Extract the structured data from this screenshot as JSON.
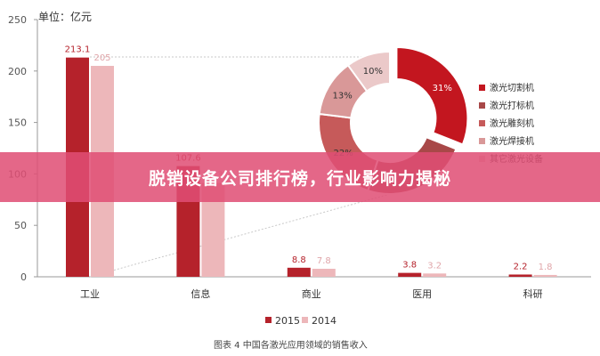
{
  "chart_data": [
    {
      "type": "bar",
      "unit_label": "单位：亿元",
      "categories": [
        "工业",
        "信息",
        "商业",
        "医用",
        "科研"
      ],
      "series": [
        {
          "name": "2015",
          "values": [
            213.1,
            107.6,
            8.8,
            3.8,
            2.2
          ],
          "labels": [
            "213.1",
            "107.6",
            "8.8",
            "3.8",
            "2.2"
          ],
          "color": "#B5222B"
        },
        {
          "name": "2014",
          "values": [
            205,
            91.3,
            7.8,
            3.2,
            1.8
          ],
          "labels": [
            "205",
            "91.3",
            "7.8",
            "3.2",
            "1.8"
          ],
          "color": "#EDB7BA"
        }
      ],
      "ylim": [
        0,
        250
      ],
      "yticks": [
        0,
        50,
        100,
        150,
        200,
        250
      ],
      "grid": false,
      "legend_position": "bottom",
      "caption": "图表 4    中国各激光应用领域的销售收入"
    },
    {
      "type": "pie",
      "style": "donut",
      "slices": [
        {
          "label": "激光切割机",
          "value": 31,
          "text": "31%",
          "color": "#C3161F"
        },
        {
          "label": "激光打标机",
          "value": 24,
          "text": "",
          "color": "#A84848"
        },
        {
          "label": "激光雕刻机",
          "value": 22,
          "text": "22%",
          "color": "#C65A5A"
        },
        {
          "label": "激光焊接机",
          "value": 13,
          "text": "13%",
          "color": "#D99898"
        },
        {
          "label": "其它激光设备",
          "value": 10,
          "text": "10%",
          "color": "#EBC9C9"
        }
      ],
      "legend_position": "right"
    }
  ],
  "banner": {
    "title": "脱销设备公司排行榜，行业影响力揭秘"
  }
}
